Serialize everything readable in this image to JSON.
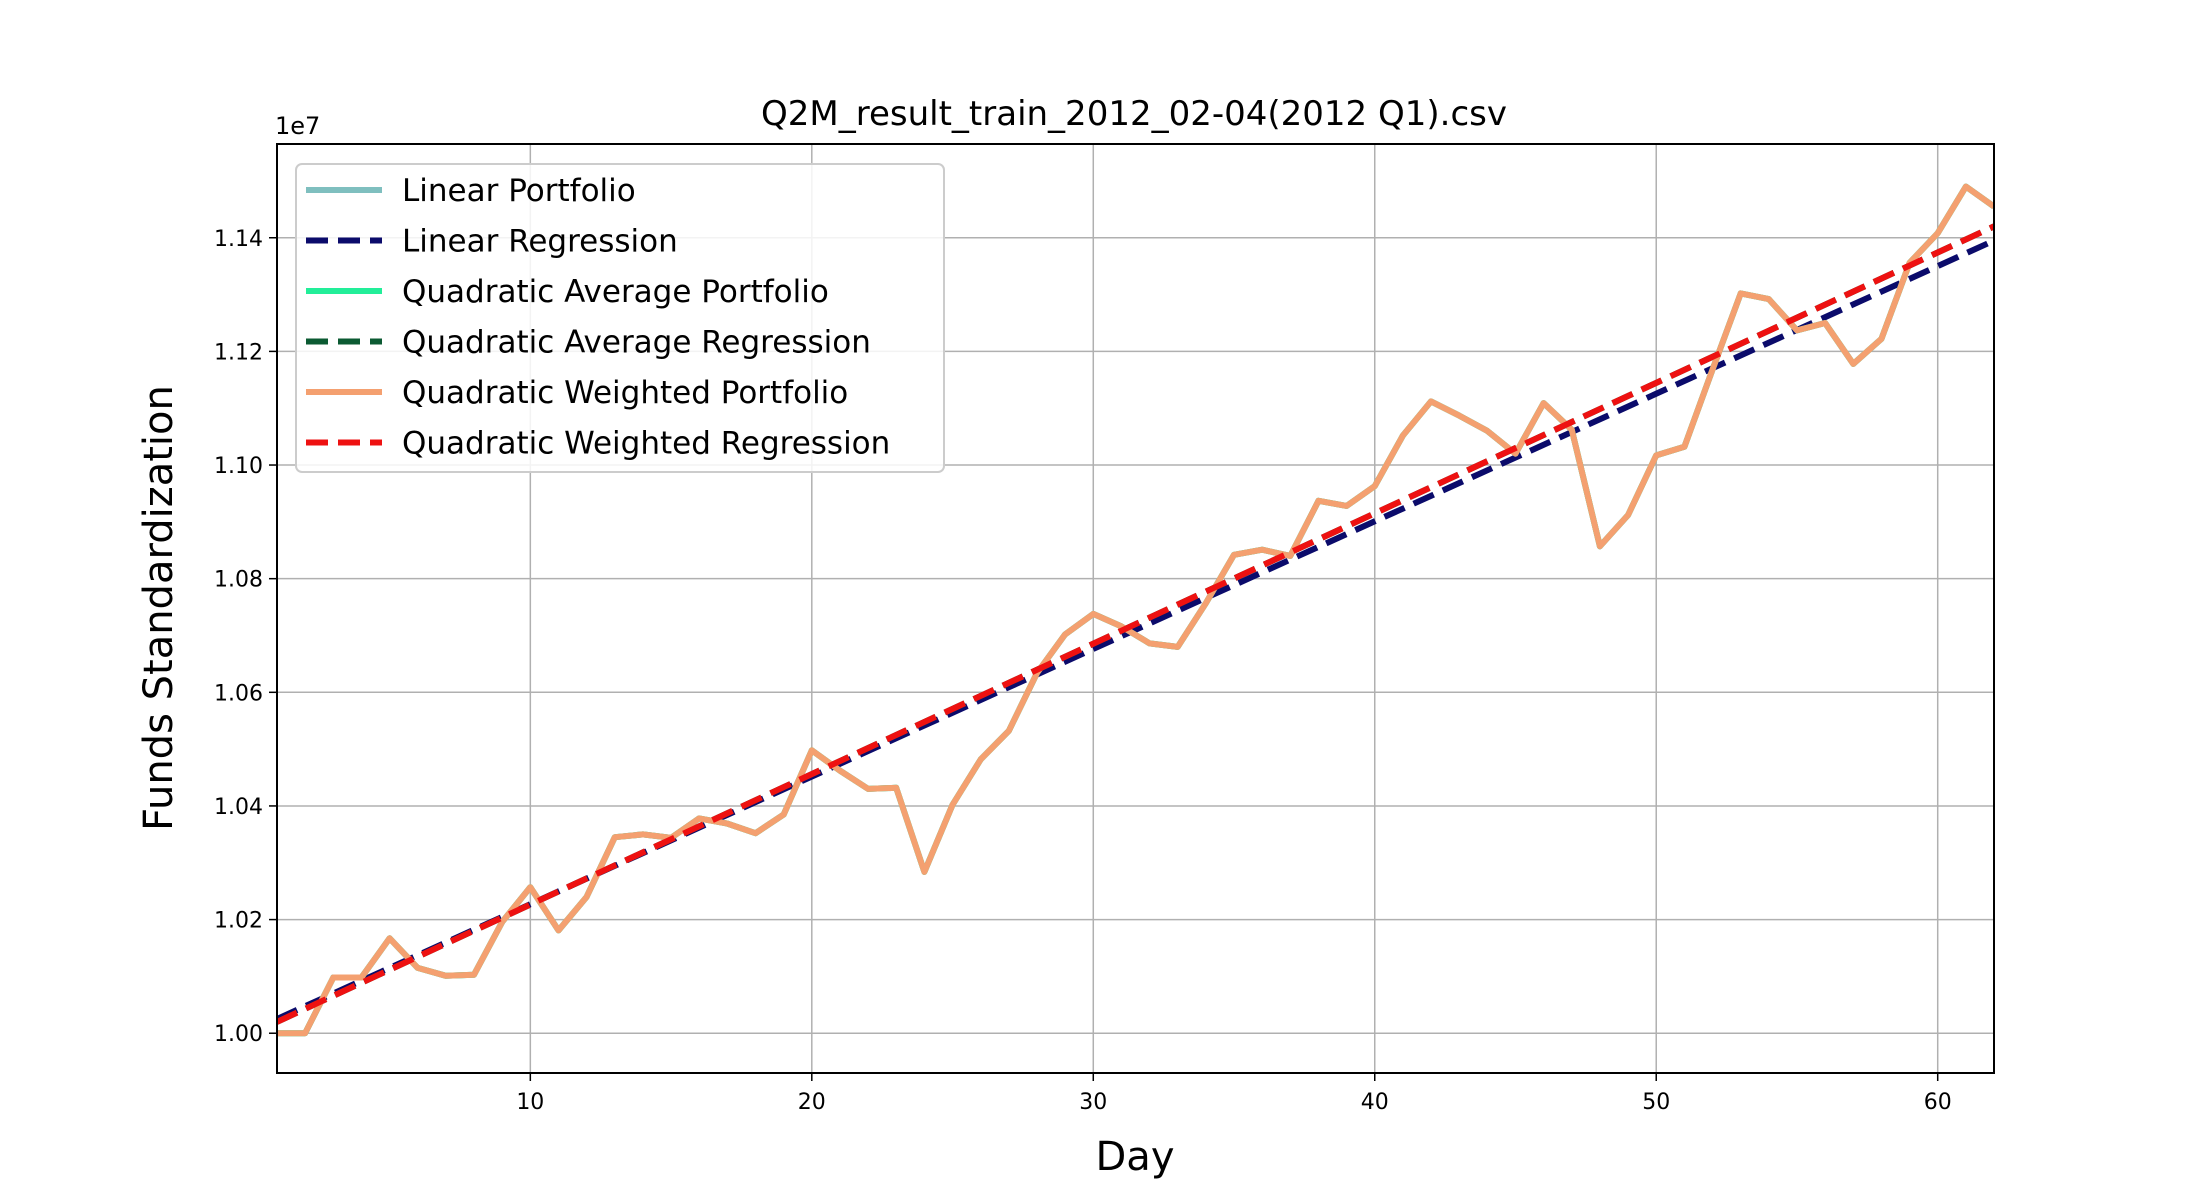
{
  "chart_data": {
    "type": "line",
    "title": "Q2M_result_train_2012_02-04(2012 Q1).csv",
    "xlabel": "Day",
    "ylabel": "Funds Standardization",
    "y_offset_label": "1e7",
    "xlim": [
      1,
      62
    ],
    "ylim": [
      0.993,
      1.1565
    ],
    "x_ticks": [
      10,
      20,
      30,
      40,
      50,
      60
    ],
    "y_ticks": [
      1.0,
      1.02,
      1.04,
      1.06,
      1.08,
      1.1,
      1.12,
      1.14
    ],
    "grid": true,
    "legend_position": "top-left",
    "series": [
      {
        "name": "Linear Portfolio",
        "color": "#7fbfbf",
        "style": "solid",
        "x": [
          1,
          2,
          3,
          4,
          5,
          6,
          7,
          8,
          9,
          10,
          11,
          12,
          13,
          14,
          15,
          16,
          17,
          18,
          19,
          20,
          21,
          22,
          23,
          24,
          25,
          26,
          27,
          28,
          29,
          30,
          31,
          32,
          33,
          34,
          35,
          36,
          37,
          38,
          39,
          40,
          41,
          42,
          43,
          44,
          45,
          46,
          47,
          48,
          49,
          50,
          51,
          52,
          53,
          54,
          55,
          56,
          57,
          58,
          59,
          60,
          61,
          62
        ],
        "y": [
          1.0,
          1.0,
          1.0098,
          1.0098,
          1.0167,
          1.0115,
          1.0101,
          1.0103,
          1.0196,
          1.0257,
          1.0181,
          1.024,
          1.0345,
          1.035,
          1.0344,
          1.0378,
          1.0369,
          1.0352,
          1.0385,
          1.0498,
          1.0462,
          1.043,
          1.0432,
          1.0284,
          1.0402,
          1.0482,
          1.0532,
          1.0634,
          1.0702,
          1.0738,
          1.0716,
          1.0686,
          1.068,
          1.0757,
          1.0842,
          1.0851,
          1.084,
          1.0937,
          1.0928,
          1.0963,
          1.1052,
          1.1112,
          1.1087,
          1.106,
          1.102,
          1.1109,
          1.1062,
          1.0857,
          1.0912,
          1.1017,
          1.1032,
          1.1168,
          1.1302,
          1.1292,
          1.1237,
          1.125,
          1.1178,
          1.1222,
          1.1356,
          1.1408,
          1.149,
          1.1455
        ]
      },
      {
        "name": "Linear Regression",
        "color": "#0b0b6b",
        "style": "dashed",
        "x": [
          1,
          62
        ],
        "y": [
          1.0025,
          1.1395
        ]
      },
      {
        "name": "Quadratic Average Portfolio",
        "color": "#22ee99",
        "style": "solid",
        "x": [
          1,
          2,
          3,
          4,
          5,
          6,
          7,
          8,
          9,
          10,
          11,
          12,
          13,
          14,
          15,
          16,
          17,
          18,
          19,
          20,
          21,
          22,
          23,
          24,
          25,
          26,
          27,
          28,
          29,
          30,
          31,
          32,
          33,
          34,
          35,
          36,
          37,
          38,
          39,
          40,
          41,
          42,
          43,
          44,
          45,
          46,
          47,
          48,
          49,
          50,
          51,
          52,
          53,
          54,
          55,
          56,
          57,
          58,
          59,
          60,
          61,
          62
        ],
        "y": [
          1.0,
          1.0,
          1.0098,
          1.0098,
          1.0167,
          1.0115,
          1.0101,
          1.0103,
          1.0196,
          1.0257,
          1.0181,
          1.024,
          1.0345,
          1.035,
          1.0344,
          1.0378,
          1.0369,
          1.0352,
          1.0385,
          1.0498,
          1.0462,
          1.043,
          1.0432,
          1.0284,
          1.0402,
          1.0482,
          1.0532,
          1.0634,
          1.0702,
          1.0738,
          1.0716,
          1.0686,
          1.068,
          1.0757,
          1.0842,
          1.0851,
          1.084,
          1.0937,
          1.0928,
          1.0963,
          1.1052,
          1.1112,
          1.1087,
          1.106,
          1.102,
          1.1109,
          1.1062,
          1.0857,
          1.0912,
          1.1017,
          1.1032,
          1.1168,
          1.1302,
          1.1292,
          1.1237,
          1.125,
          1.1178,
          1.1222,
          1.1356,
          1.1408,
          1.149,
          1.1455
        ]
      },
      {
        "name": "Quadratic Average Regression",
        "color": "#0b5a32",
        "style": "dashed",
        "x": [
          1,
          62
        ],
        "y": [
          1.002,
          1.142
        ]
      },
      {
        "name": "Quadratic Weighted Portfolio",
        "color": "#f4a070",
        "style": "solid",
        "x": [
          1,
          2,
          3,
          4,
          5,
          6,
          7,
          8,
          9,
          10,
          11,
          12,
          13,
          14,
          15,
          16,
          17,
          18,
          19,
          20,
          21,
          22,
          23,
          24,
          25,
          26,
          27,
          28,
          29,
          30,
          31,
          32,
          33,
          34,
          35,
          36,
          37,
          38,
          39,
          40,
          41,
          42,
          43,
          44,
          45,
          46,
          47,
          48,
          49,
          50,
          51,
          52,
          53,
          54,
          55,
          56,
          57,
          58,
          59,
          60,
          61,
          62
        ],
        "y": [
          1.0,
          1.0,
          1.0098,
          1.0098,
          1.0167,
          1.0115,
          1.0101,
          1.0103,
          1.0196,
          1.0257,
          1.0181,
          1.024,
          1.0345,
          1.035,
          1.0344,
          1.0378,
          1.0369,
          1.0352,
          1.0385,
          1.0498,
          1.0462,
          1.043,
          1.0432,
          1.0284,
          1.0402,
          1.0482,
          1.0532,
          1.0634,
          1.0702,
          1.0738,
          1.0716,
          1.0686,
          1.068,
          1.0757,
          1.0842,
          1.0851,
          1.084,
          1.0937,
          1.0928,
          1.0963,
          1.1052,
          1.1112,
          1.1087,
          1.106,
          1.102,
          1.1109,
          1.1062,
          1.0857,
          1.0912,
          1.1017,
          1.1032,
          1.1168,
          1.1302,
          1.1292,
          1.1237,
          1.125,
          1.1178,
          1.1222,
          1.1356,
          1.1408,
          1.149,
          1.1455
        ]
      },
      {
        "name": "Quadratic Weighted Regression",
        "color": "#ee1111",
        "style": "dashed",
        "x": [
          1,
          62
        ],
        "y": [
          1.002,
          1.142
        ]
      }
    ]
  }
}
